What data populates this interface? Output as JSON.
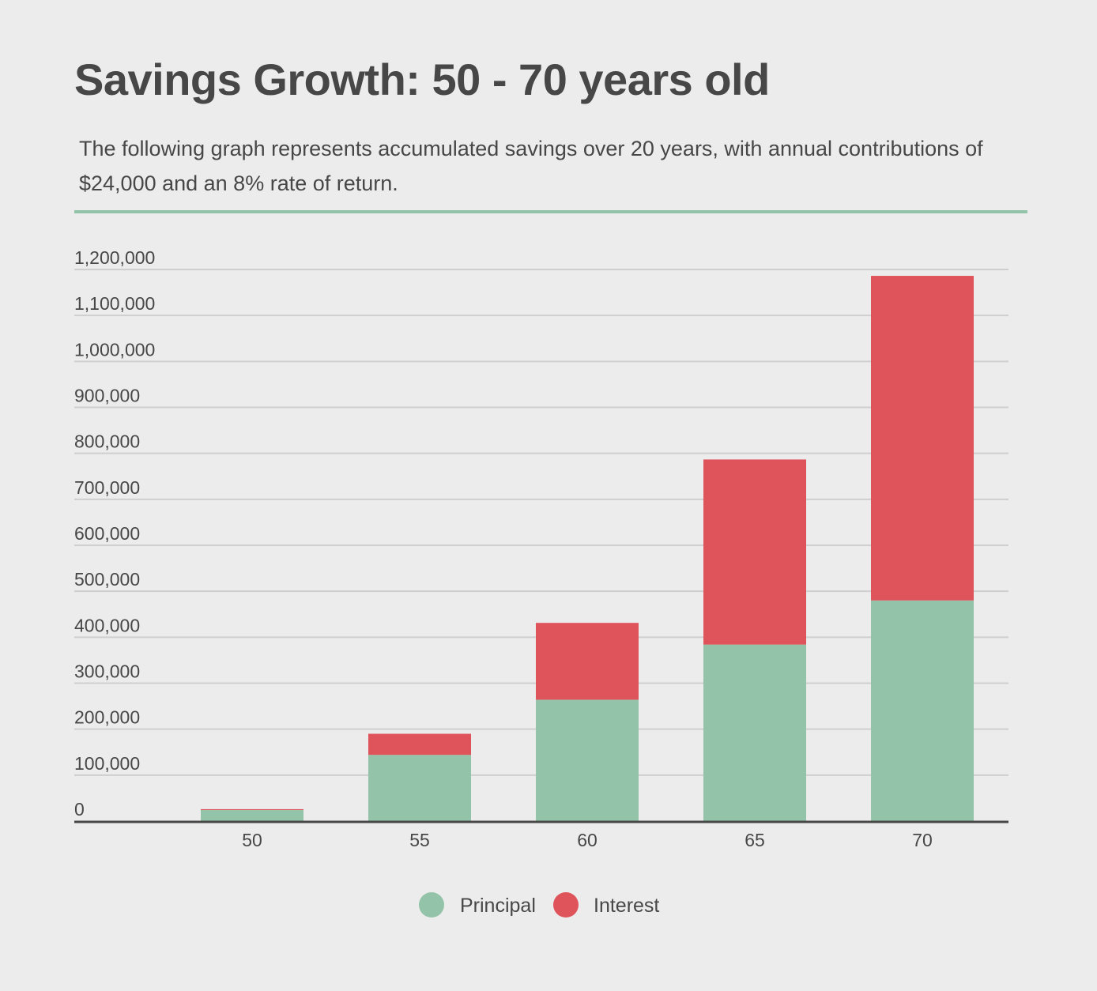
{
  "header": {
    "title": "Savings Growth: 50 - 70 years old",
    "subtitle": "The following graph represents accumulated savings over 20 years, with annual contributions of $24,000 and an 8% rate of return."
  },
  "colors": {
    "principal": "#93c4a9",
    "interest": "#df545b",
    "gridline": "#cfcfcf",
    "axis": "#474747",
    "divider": "#93c4a9"
  },
  "chart_data": {
    "type": "bar",
    "stacked": true,
    "title": "",
    "xlabel": "",
    "ylabel": "",
    "categories": [
      "50",
      "55",
      "60",
      "65",
      "70"
    ],
    "series": [
      {
        "name": "Principal",
        "values": [
          24000,
          144000,
          264000,
          384000,
          480000
        ]
      },
      {
        "name": "Interest",
        "values": [
          1920,
          45977,
          167166,
          402662,
          706129
        ]
      }
    ],
    "ylim": [
      0,
      1200000
    ],
    "yticks": [
      0,
      100000,
      200000,
      300000,
      400000,
      500000,
      600000,
      700000,
      800000,
      900000,
      1000000,
      1100000,
      1200000
    ],
    "ytick_labels": [
      "0",
      "100,000",
      "200,000",
      "300,000",
      "400,000",
      "500,000",
      "600,000",
      "700,000",
      "800,000",
      "900,000",
      "1,000,000",
      "1,100,000",
      "1,200,000"
    ],
    "grid": true,
    "legend_position": "bottom-center"
  }
}
